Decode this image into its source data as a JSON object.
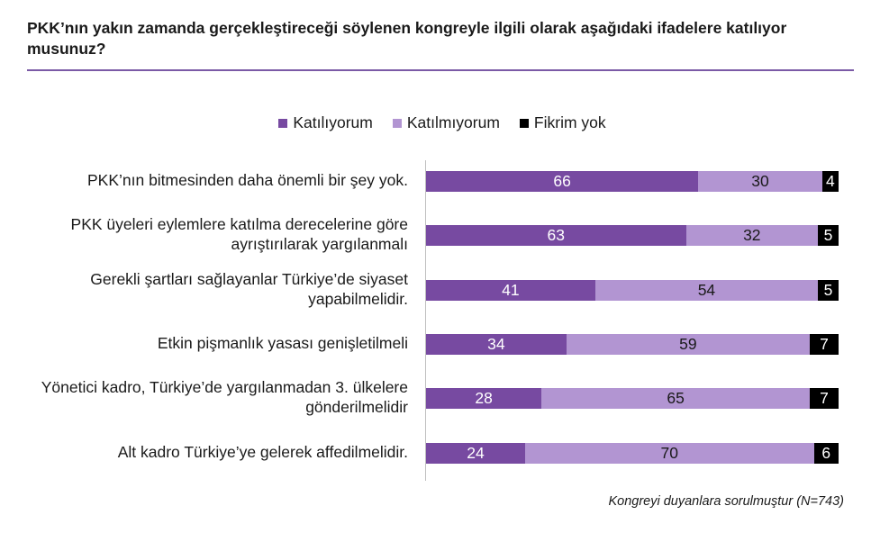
{
  "title": "PKK’nın yakın zamanda gerçekleştireceği söylenen kongreyle ilgili olarak aşağıdaki ifadelere katılıyor musunuz?",
  "footnote": "Kongreyi duyanlara sorulmuştur (N=743)",
  "colors": {
    "agree": "#774aa1",
    "disagree": "#b295d2",
    "noidea": "#000000",
    "rule": "#7b5aa6"
  },
  "chart_data": {
    "type": "bar",
    "orientation": "horizontal",
    "stacked": true,
    "legend_position": "top",
    "categories": [
      "PKK’nın bitmesinden daha önemli bir şey yok.",
      "PKK üyeleri eylemlere katılma derecelerine göre ayrıştırılarak yargılanmalı",
      "Gerekli şartları sağlayanlar Türkiye’de siyaset yapabilmelidir.",
      "Etkin pişmanlık yasası genişletilmeli",
      "Yönetici kadro, Türkiye’de yargılanmadan 3. ülkelere gönderilmelidir",
      "Alt kadro Türkiye’ye gelerek affedilmelidir."
    ],
    "series": [
      {
        "name": "Katılıyorum",
        "values": [
          66,
          63,
          41,
          34,
          28,
          24
        ]
      },
      {
        "name": "Katılmıyorum",
        "values": [
          30,
          32,
          54,
          59,
          65,
          70
        ]
      },
      {
        "name": "Fikrim yok",
        "values": [
          4,
          5,
          5,
          7,
          7,
          6
        ]
      }
    ],
    "xlim": [
      0,
      100
    ]
  }
}
